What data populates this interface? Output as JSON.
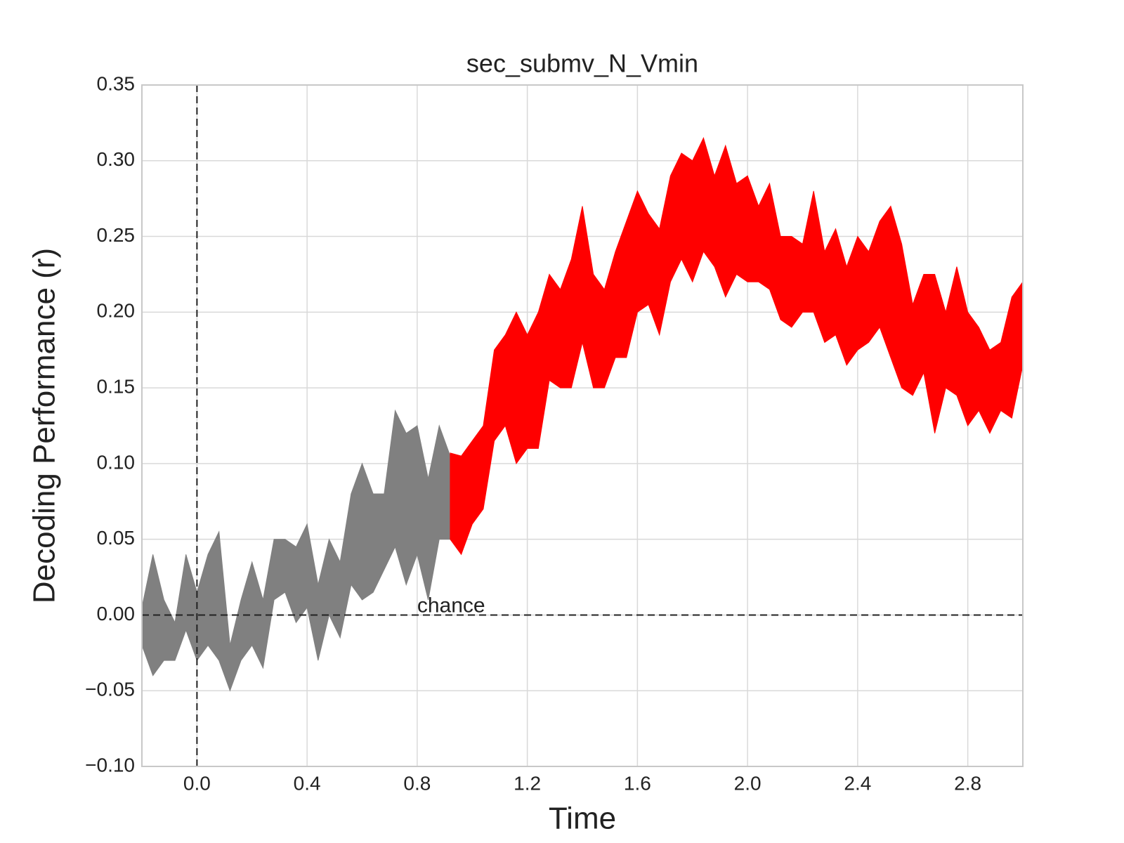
{
  "chart_data": {
    "type": "band",
    "title": "sec_submv_N_Vmin",
    "x_label": "Time",
    "y_label": "Decoding Performance (r)",
    "xlim": [
      -0.2,
      3.0
    ],
    "ylim": [
      -0.1,
      0.35
    ],
    "grid": true,
    "xticks": [
      {
        "value": 0,
        "label": "0.0"
      },
      {
        "value": 0.4,
        "label": "0.4"
      },
      {
        "value": 0.8,
        "label": "0.8"
      },
      {
        "value": 1.2,
        "label": "1.2"
      },
      {
        "value": 1.6,
        "label": "1.6"
      },
      {
        "value": 2.0,
        "label": "2.0"
      },
      {
        "value": 2.4,
        "label": "2.4"
      },
      {
        "value": 2.8,
        "label": "2.8"
      }
    ],
    "yticks": [
      {
        "value": -0.1,
        "label": "−0.10"
      },
      {
        "value": -0.05,
        "label": "−0.05"
      },
      {
        "value": 0,
        "label": "0.00"
      },
      {
        "value": 0.05,
        "label": "0.05"
      },
      {
        "value": 0.1,
        "label": "0.10"
      },
      {
        "value": 0.15,
        "label": "0.15"
      },
      {
        "value": 0.2,
        "label": "0.20"
      },
      {
        "value": 0.25,
        "label": "0.25"
      },
      {
        "value": 0.3,
        "label": "0.30"
      },
      {
        "value": 0.35,
        "label": "0.35"
      }
    ],
    "vlines": [
      0
    ],
    "hlines": [
      0
    ],
    "annotations": [
      {
        "text": "chance",
        "x": 0.8,
        "y": 0
      }
    ],
    "series": [
      {
        "color": "#808080",
        "x": [
          -0.2,
          -0.16,
          -0.12,
          -0.08,
          -0.04,
          0,
          0.04,
          0.08,
          0.12,
          0.16,
          0.2,
          0.24,
          0.28,
          0.32,
          0.36,
          0.4,
          0.44,
          0.48,
          0.52,
          0.56,
          0.6,
          0.64,
          0.68,
          0.72,
          0.76,
          0.8,
          0.84,
          0.88,
          0.92
        ],
        "upper": [
          0.005,
          0.04,
          0.01,
          -0.005,
          0.04,
          0.015,
          0.04,
          0.055,
          -0.02,
          0.01,
          0.035,
          0.01,
          0.05,
          0.05,
          0.045,
          0.06,
          0.02,
          0.05,
          0.035,
          0.08,
          0.1,
          0.08,
          0.08,
          0.135,
          0.12,
          0.125,
          0.09,
          0.125,
          0.105
        ],
        "lower": [
          -0.02,
          -0.04,
          -0.03,
          -0.03,
          -0.01,
          -0.03,
          -0.02,
          -0.03,
          -0.05,
          -0.03,
          -0.02,
          -0.035,
          0.01,
          0.015,
          -0.005,
          0.005,
          -0.03,
          0,
          -0.015,
          0.02,
          0.01,
          0.015,
          0.03,
          0.045,
          0.02,
          0.04,
          0.01,
          0.05,
          0.05
        ]
      },
      {
        "color": "#ff0000",
        "x": [
          0.92,
          0.96,
          1.0,
          1.04,
          1.08,
          1.12,
          1.16,
          1.2,
          1.24,
          1.28,
          1.32,
          1.36,
          1.4,
          1.44,
          1.48,
          1.52,
          1.56,
          1.6,
          1.64,
          1.68,
          1.72,
          1.76,
          1.8,
          1.84,
          1.88,
          1.92,
          1.96,
          2.0,
          2.04,
          2.08,
          2.12,
          2.16,
          2.2,
          2.24,
          2.28,
          2.32,
          2.36,
          2.4,
          2.44,
          2.48,
          2.52,
          2.56,
          2.6,
          2.64,
          2.68,
          2.72,
          2.76,
          2.8,
          2.84,
          2.88,
          2.92,
          2.96,
          3.0
        ],
        "upper": [
          0.107,
          0.105,
          0.115,
          0.125,
          0.175,
          0.185,
          0.2,
          0.185,
          0.2,
          0.225,
          0.215,
          0.235,
          0.27,
          0.225,
          0.215,
          0.24,
          0.26,
          0.28,
          0.265,
          0.255,
          0.29,
          0.305,
          0.3,
          0.315,
          0.29,
          0.31,
          0.285,
          0.29,
          0.27,
          0.285,
          0.25,
          0.25,
          0.245,
          0.28,
          0.24,
          0.255,
          0.23,
          0.25,
          0.24,
          0.26,
          0.27,
          0.245,
          0.205,
          0.225,
          0.225,
          0.2,
          0.23,
          0.2,
          0.19,
          0.175,
          0.18,
          0.21,
          0.22
        ],
        "lower": [
          0.05,
          0.04,
          0.06,
          0.07,
          0.115,
          0.125,
          0.1,
          0.11,
          0.11,
          0.155,
          0.15,
          0.15,
          0.18,
          0.15,
          0.15,
          0.17,
          0.17,
          0.2,
          0.205,
          0.185,
          0.22,
          0.235,
          0.22,
          0.24,
          0.23,
          0.21,
          0.225,
          0.22,
          0.22,
          0.215,
          0.195,
          0.19,
          0.2,
          0.2,
          0.18,
          0.185,
          0.165,
          0.175,
          0.18,
          0.19,
          0.17,
          0.15,
          0.145,
          0.16,
          0.12,
          0.15,
          0.145,
          0.125,
          0.135,
          0.12,
          0.135,
          0.13,
          0.165
        ]
      }
    ]
  }
}
